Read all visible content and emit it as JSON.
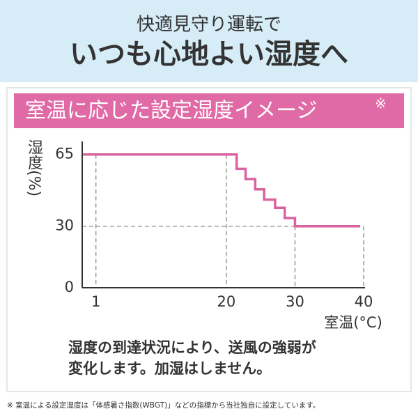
{
  "header": {
    "subtitle": "快適見守り運転で",
    "title": "いつも心地よい湿度へ"
  },
  "chart_data": {
    "type": "line",
    "title": "室温に応じた設定湿度イメージ",
    "title_mark": "※",
    "x_label": "室温(°C)",
    "y_label": "湿度(%)",
    "x": [
      -1,
      21.5,
      21.5,
      22.8,
      22.8,
      24.2,
      24.2,
      25.5,
      25.5,
      27.1,
      27.1,
      28.5,
      28.5,
      30,
      30,
      39.5
    ],
    "series": [
      {
        "color": "#d9639f",
        "values": [
          65,
          65,
          58,
          58,
          53,
          53,
          48,
          48,
          43,
          43,
          39,
          39,
          34,
          34,
          30,
          30
        ]
      }
    ],
    "xlim": [
      -1,
      40
    ],
    "ylim": [
      0,
      70
    ],
    "xticks": [
      1,
      20,
      30,
      40
    ],
    "yticks": [
      0,
      30,
      65
    ],
    "note": [
      "湿度の到達状況により、送風の強弱が",
      "変化します。加湿はしません。"
    ]
  },
  "footnote": "※ 室温による設定湿度は「体感暑さ指数(WBGT)」などの指標から当社独自に設定しています。"
}
